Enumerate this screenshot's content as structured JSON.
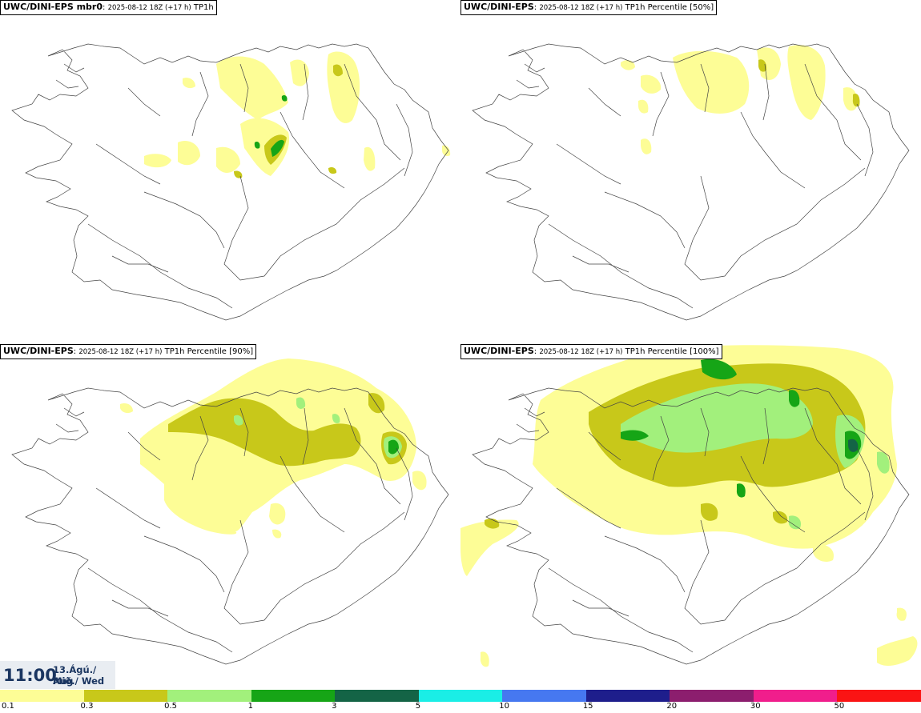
{
  "panels": [
    {
      "model": "UWC/DINI-EPS mbr0",
      "run": "2025-08-12 18Z (+17 h)",
      "variable": "TP1h"
    },
    {
      "model": "UWC/DINI-EPS",
      "run": "2025-08-12 18Z (+17 h)",
      "variable": "TP1h Percentile [50%]"
    },
    {
      "model": "UWC/DINI-EPS",
      "run": "2025-08-12 18Z (+17 h)",
      "variable": "TP1h Percentile [90%]"
    },
    {
      "model": "UWC/DINI-EPS",
      "run": "2025-08-12 18Z (+17 h)",
      "variable": "TP1h Percentile [100%]"
    }
  ],
  "valid_time": {
    "time": "11:00",
    "date": "13.Ágú./ Aug",
    "weekday": "Mið./ Wed"
  },
  "legend": {
    "colors": [
      "#fdfd96",
      "#c8c81a",
      "#a2f07c",
      "#16a516",
      "#146446",
      "#1aeee6",
      "#4678f0",
      "#1e1e8c",
      "#8c1e6e",
      "#f01e8c",
      "#fa1414"
    ],
    "labels": [
      "0.1",
      "0.3",
      "0.5",
      "1",
      "3",
      "5",
      "10",
      "15",
      "20",
      "30",
      "50"
    ]
  }
}
